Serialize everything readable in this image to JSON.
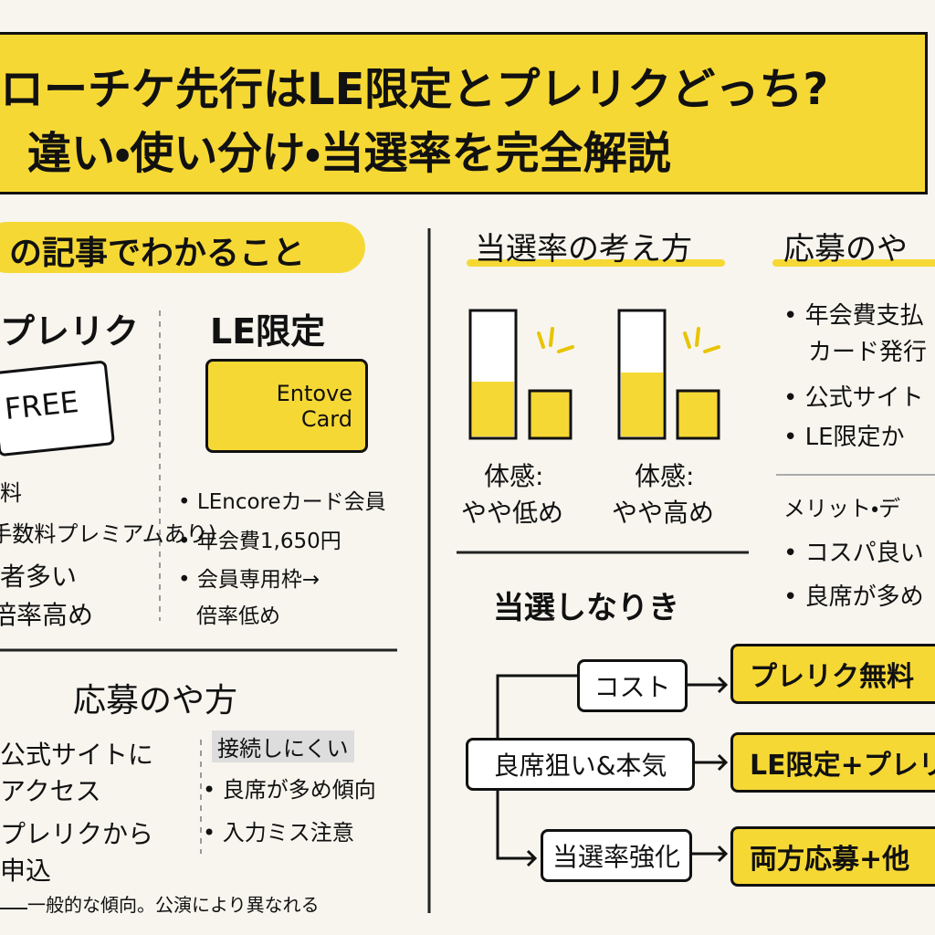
{
  "header": {
    "title_line1": "ローチケ先行はLE限定とプレリクどっち?",
    "title_line2": "違い・使い分け・当選率を完全解説"
  },
  "summary": {
    "heading": "の記事でわかること",
    "prerequest": {
      "title": "プレリク",
      "ticket": "FREE",
      "lines": [
        "料",
        "(手数料プレミアムあり)",
        "者多い",
        "倍率高め"
      ]
    },
    "le": {
      "title": "LE限定",
      "card": [
        "Entove",
        "Card"
      ],
      "bullets": [
        "LEncoreカード会員",
        "年会費1,650円",
        "会員専用枠→",
        "倍率低め"
      ]
    }
  },
  "apply": {
    "heading": "応募のや方",
    "steps": [
      "公式サイトに",
      "アクセス",
      "プレリクから",
      "申込"
    ],
    "notes_heading": "接続しにくい",
    "bullets": [
      "良席が多め傾向",
      "入力ミス注意"
    ],
    "footnote": "一般的な傾向。公演により異なれる"
  },
  "rate": {
    "heading": "当選率の考え方",
    "bars": [
      {
        "label": [
          "体感:",
          "やや低め"
        ]
      },
      {
        "label": [
          "体感:",
          "やや高め"
        ]
      }
    ]
  },
  "how": {
    "heading": "応募のや",
    "bullets": [
      "年会費支払",
      "カード発行",
      "公式サイト",
      "LE限定か"
    ],
    "merit_heading": "メリット・デ",
    "merit_bullets": [
      "コスパ良い",
      "良席が多め"
    ]
  },
  "flow": {
    "heading": "当選しなりき",
    "rows": [
      {
        "condition": "コスト",
        "result": "プレリク無料"
      },
      {
        "condition": "良席狙い&本気",
        "result": "LE限定+プレリク"
      },
      {
        "condition": "当選率強化",
        "result": "両方応募+他"
      }
    ]
  }
}
